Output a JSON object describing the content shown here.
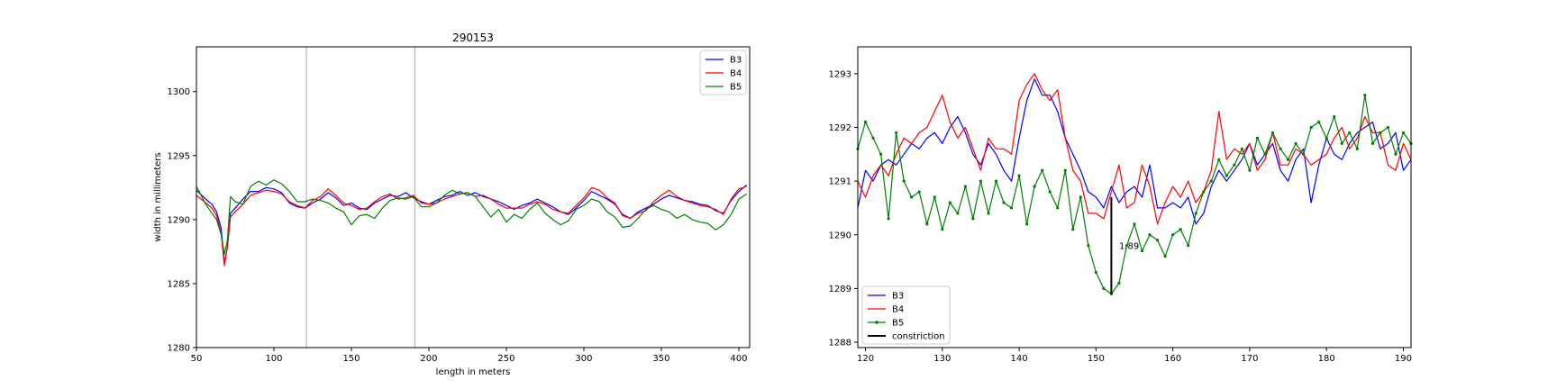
{
  "chart_data": [
    {
      "type": "line",
      "title": "290153",
      "xlabel": "length in meters",
      "ylabel": "width in millimeters",
      "xlim": [
        50,
        407
      ],
      "ylim": [
        1280,
        1303.5
      ],
      "xticks": [
        50,
        100,
        150,
        200,
        250,
        300,
        350,
        400
      ],
      "yticks": [
        1280,
        1285,
        1290,
        1295,
        1300
      ],
      "vertical_lines": [
        121,
        191
      ],
      "legend_position": "upper right",
      "grid": false,
      "x": [
        50,
        56,
        60,
        63,
        66,
        68,
        70,
        72,
        75,
        80,
        85,
        90,
        95,
        100,
        105,
        110,
        115,
        120,
        125,
        130,
        135,
        140,
        145,
        150,
        155,
        160,
        165,
        170,
        175,
        180,
        185,
        190,
        195,
        200,
        205,
        210,
        215,
        220,
        225,
        230,
        235,
        240,
        245,
        250,
        255,
        260,
        265,
        270,
        275,
        280,
        285,
        290,
        295,
        300,
        305,
        310,
        315,
        320,
        325,
        330,
        335,
        340,
        345,
        350,
        355,
        360,
        365,
        370,
        375,
        380,
        385,
        390,
        395,
        400,
        405
      ],
      "series": [
        {
          "name": "B3",
          "color": "#0000ff",
          "values": [
            1292.3,
            1291.6,
            1291.2,
            1290.6,
            1289.3,
            1286.6,
            1287.8,
            1290.5,
            1290.9,
            1291.6,
            1292.2,
            1292.2,
            1292.5,
            1292.4,
            1292.1,
            1291.3,
            1291.0,
            1290.9,
            1291.3,
            1291.6,
            1292.1,
            1291.7,
            1291.1,
            1291.3,
            1290.9,
            1290.8,
            1291.3,
            1291.6,
            1291.9,
            1291.8,
            1292.1,
            1291.7,
            1291.4,
            1291.2,
            1291.5,
            1291.8,
            1291.9,
            1292.2,
            1291.9,
            1292.1,
            1291.8,
            1291.6,
            1291.4,
            1291.1,
            1290.8,
            1291.1,
            1291.3,
            1291.6,
            1291.3,
            1291.0,
            1290.6,
            1290.4,
            1290.9,
            1291.5,
            1292.2,
            1291.9,
            1291.6,
            1291.2,
            1290.4,
            1290.1,
            1290.6,
            1290.9,
            1291.2,
            1291.6,
            1291.9,
            1291.7,
            1291.5,
            1291.4,
            1291.2,
            1291.1,
            1290.7,
            1290.5,
            1291.5,
            1292.2,
            1292.7
          ]
        },
        {
          "name": "B4",
          "color": "#ff0000",
          "values": [
            1291.9,
            1291.3,
            1290.9,
            1290.3,
            1288.9,
            1286.4,
            1287.9,
            1290.2,
            1290.6,
            1291.2,
            1291.9,
            1292.1,
            1292.3,
            1292.2,
            1292.0,
            1291.4,
            1291.1,
            1290.9,
            1291.5,
            1291.8,
            1292.4,
            1291.9,
            1291.3,
            1291.1,
            1290.8,
            1290.9,
            1291.4,
            1291.8,
            1292.0,
            1291.6,
            1291.7,
            1291.9,
            1291.3,
            1291.2,
            1291.3,
            1291.6,
            1291.8,
            1292.0,
            1292.1,
            1291.8,
            1291.9,
            1291.6,
            1291.2,
            1290.9,
            1290.9,
            1290.9,
            1291.2,
            1291.4,
            1291.2,
            1290.8,
            1290.6,
            1290.5,
            1291.1,
            1291.7,
            1292.5,
            1292.3,
            1291.7,
            1291.3,
            1290.3,
            1290.1,
            1290.5,
            1290.7,
            1291.4,
            1291.9,
            1292.3,
            1291.8,
            1291.5,
            1291.3,
            1291.1,
            1291.0,
            1290.8,
            1290.4,
            1291.6,
            1292.4,
            1292.6
          ]
        },
        {
          "name": "B5",
          "color": "#008000",
          "values": [
            1292.6,
            1291.2,
            1290.5,
            1290.0,
            1288.8,
            1287.3,
            1288.4,
            1291.8,
            1291.4,
            1291.2,
            1292.6,
            1293.0,
            1292.7,
            1293.1,
            1292.8,
            1292.2,
            1291.4,
            1291.4,
            1291.6,
            1291.5,
            1291.3,
            1290.9,
            1290.6,
            1289.6,
            1290.3,
            1290.4,
            1290.1,
            1290.9,
            1291.5,
            1291.7,
            1291.6,
            1291.8,
            1291.0,
            1291.0,
            1291.3,
            1291.9,
            1292.3,
            1292.0,
            1292.1,
            1291.8,
            1291.0,
            1290.2,
            1290.8,
            1289.8,
            1290.4,
            1290.1,
            1290.8,
            1291.3,
            1290.5,
            1290.0,
            1289.6,
            1289.9,
            1290.8,
            1291.1,
            1291.6,
            1291.4,
            1290.6,
            1290.2,
            1289.4,
            1289.5,
            1290.1,
            1290.8,
            1291.1,
            1290.8,
            1290.6,
            1290.1,
            1290.4,
            1290.0,
            1289.8,
            1289.7,
            1289.2,
            1289.6,
            1290.4,
            1291.6,
            1292.0
          ]
        }
      ]
    },
    {
      "type": "line",
      "title": "",
      "xlabel": "",
      "ylabel": "",
      "xlim": [
        119,
        191
      ],
      "ylim": [
        1287.9,
        1293.5
      ],
      "xticks": [
        120,
        130,
        140,
        150,
        160,
        170,
        180,
        190
      ],
      "yticks": [
        1288,
        1289,
        1290,
        1291,
        1292,
        1293
      ],
      "legend_position": "lower left",
      "grid": false,
      "x": [
        119,
        120,
        121,
        122,
        123,
        124,
        125,
        126,
        127,
        128,
        129,
        130,
        131,
        132,
        133,
        134,
        135,
        136,
        137,
        138,
        139,
        140,
        141,
        142,
        143,
        144,
        145,
        146,
        147,
        148,
        149,
        150,
        151,
        152,
        153,
        154,
        155,
        156,
        157,
        158,
        159,
        160,
        161,
        162,
        163,
        164,
        165,
        166,
        167,
        168,
        169,
        170,
        171,
        172,
        173,
        174,
        175,
        176,
        177,
        178,
        179,
        180,
        181,
        182,
        183,
        184,
        185,
        186,
        187,
        188,
        189,
        190,
        191
      ],
      "series": [
        {
          "name": "B3",
          "color": "#0000ff",
          "marker": "none",
          "values": [
            1290.5,
            1291.2,
            1291.0,
            1291.3,
            1291.4,
            1291.3,
            1291.5,
            1291.7,
            1291.6,
            1291.8,
            1291.9,
            1291.7,
            1292.0,
            1292.2,
            1291.9,
            1291.5,
            1291.3,
            1291.7,
            1291.5,
            1291.2,
            1291.0,
            1291.8,
            1292.5,
            1292.9,
            1292.6,
            1292.6,
            1292.3,
            1291.8,
            1291.5,
            1291.2,
            1290.8,
            1290.7,
            1290.5,
            1290.9,
            1290.6,
            1290.8,
            1290.9,
            1290.7,
            1291.3,
            1290.5,
            1290.5,
            1290.6,
            1290.5,
            1290.7,
            1290.2,
            1290.4,
            1290.9,
            1291.2,
            1291.0,
            1291.2,
            1291.4,
            1291.7,
            1291.3,
            1291.5,
            1291.7,
            1291.2,
            1291.0,
            1291.4,
            1291.6,
            1290.6,
            1291.3,
            1291.8,
            1291.5,
            1291.4,
            1291.7,
            1291.9,
            1292.0,
            1292.1,
            1291.6,
            1291.7,
            1291.9,
            1291.2,
            1291.4
          ]
        },
        {
          "name": "B4",
          "color": "#ff0000",
          "marker": "none",
          "values": [
            1291.0,
            1290.7,
            1291.1,
            1291.3,
            1291.1,
            1291.5,
            1291.8,
            1291.7,
            1291.9,
            1292.0,
            1292.3,
            1292.6,
            1292.1,
            1291.8,
            1292.0,
            1291.6,
            1291.2,
            1291.8,
            1291.6,
            1291.6,
            1291.5,
            1292.5,
            1292.8,
            1293.0,
            1292.7,
            1292.5,
            1292.7,
            1291.8,
            1291.2,
            1291.0,
            1290.4,
            1290.4,
            1290.3,
            1290.8,
            1291.3,
            1290.5,
            1290.6,
            1291.3,
            1290.9,
            1290.2,
            1290.6,
            1290.9,
            1290.7,
            1291.0,
            1290.6,
            1290.8,
            1291.2,
            1292.3,
            1291.4,
            1291.6,
            1291.5,
            1291.7,
            1291.2,
            1291.4,
            1291.9,
            1291.3,
            1291.3,
            1291.6,
            1291.5,
            1291.3,
            1291.4,
            1291.5,
            1291.8,
            1292.0,
            1291.6,
            1291.8,
            1292.2,
            1291.9,
            1291.9,
            1291.3,
            1291.2,
            1291.7,
            1291.4
          ]
        },
        {
          "name": "B5",
          "color": "#008000",
          "marker": "dot",
          "values": [
            1291.6,
            1292.1,
            1291.8,
            1291.5,
            1290.3,
            1291.9,
            1291.0,
            1290.7,
            1290.8,
            1290.2,
            1290.7,
            1290.1,
            1290.6,
            1290.4,
            1290.9,
            1290.3,
            1291.0,
            1290.4,
            1291.0,
            1290.6,
            1290.5,
            1291.1,
            1290.2,
            1290.9,
            1291.2,
            1290.8,
            1290.5,
            1291.2,
            1290.1,
            1290.7,
            1289.8,
            1289.3,
            1289.0,
            1288.9,
            1289.1,
            1289.8,
            1290.2,
            1289.7,
            1290.0,
            1289.9,
            1289.6,
            1290.0,
            1290.1,
            1289.8,
            1290.4,
            1290.8,
            1291.0,
            1291.4,
            1291.1,
            1291.3,
            1291.6,
            1291.2,
            1291.8,
            1291.5,
            1291.9,
            1291.6,
            1291.4,
            1291.7,
            1291.5,
            1292.0,
            1292.1,
            1291.8,
            1292.2,
            1291.7,
            1291.9,
            1291.6,
            1292.6,
            1291.7,
            1291.9,
            1292.0,
            1291.5,
            1291.9,
            1291.7
          ]
        },
        {
          "name": "constriction",
          "color": "#000000",
          "marker": "none",
          "segment": true,
          "x": [
            152,
            152
          ],
          "values": [
            1290.7,
            1288.9
          ]
        }
      ],
      "annotations": [
        {
          "text": "1.89",
          "x": 153,
          "y": 1289.8
        }
      ]
    }
  ]
}
